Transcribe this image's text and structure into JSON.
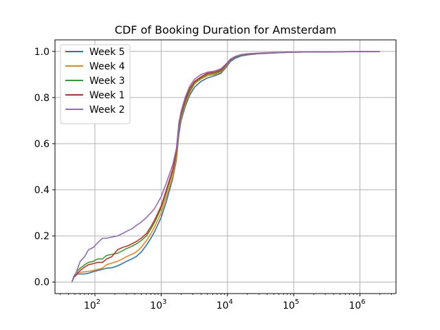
{
  "chart_data": {
    "type": "line",
    "title": "CDF of Booking Duration for Amsterdam",
    "xlabel": "",
    "ylabel": "",
    "xscale": "log",
    "xlim": [
      25,
      3500000
    ],
    "ylim": [
      -0.05,
      1.05
    ],
    "grid": true,
    "legend_position": "top-left",
    "xticks": [
      {
        "value": 100,
        "base": "10",
        "exp": "2"
      },
      {
        "value": 1000,
        "base": "10",
        "exp": "3"
      },
      {
        "value": 10000,
        "base": "10",
        "exp": "4"
      },
      {
        "value": 100000,
        "base": "10",
        "exp": "5"
      },
      {
        "value": 1000000,
        "base": "10",
        "exp": "6"
      }
    ],
    "yticks": [
      {
        "value": 0.0,
        "label": "0.0"
      },
      {
        "value": 0.2,
        "label": "0.2"
      },
      {
        "value": 0.4,
        "label": "0.4"
      },
      {
        "value": 0.6,
        "label": "0.6"
      },
      {
        "value": 0.8,
        "label": "0.8"
      },
      {
        "value": 1.0,
        "label": "1.0"
      }
    ],
    "series": [
      {
        "name": "Week 5",
        "color": "#1f77b4",
        "x": [
          45,
          48,
          52,
          55,
          60,
          70,
          80,
          95,
          110,
          130,
          150,
          180,
          220,
          260,
          300,
          360,
          420,
          500,
          600,
          700,
          800,
          1000,
          1200,
          1500,
          1700,
          1850,
          2000,
          2300,
          2700,
          3200,
          4000,
          5000,
          6500,
          8000,
          9500,
          11000,
          13000,
          16000,
          20000,
          30000,
          50000,
          100000,
          300000,
          1000000,
          2000000
        ],
        "y": [
          0.0,
          0.02,
          0.03,
          0.035,
          0.035,
          0.035,
          0.038,
          0.045,
          0.05,
          0.055,
          0.06,
          0.062,
          0.07,
          0.08,
          0.09,
          0.1,
          0.11,
          0.13,
          0.16,
          0.19,
          0.22,
          0.28,
          0.35,
          0.45,
          0.53,
          0.64,
          0.7,
          0.76,
          0.81,
          0.845,
          0.87,
          0.885,
          0.895,
          0.905,
          0.93,
          0.955,
          0.97,
          0.98,
          0.985,
          0.99,
          0.993,
          0.997,
          0.998,
          0.999,
          1.0
        ]
      },
      {
        "name": "Week 4",
        "color": "#ff7f0e",
        "x": [
          45,
          48,
          52,
          55,
          60,
          70,
          80,
          95,
          110,
          130,
          150,
          180,
          220,
          260,
          300,
          360,
          420,
          500,
          600,
          700,
          800,
          1000,
          1200,
          1500,
          1700,
          1850,
          2000,
          2300,
          2700,
          3200,
          4000,
          5000,
          6500,
          8000,
          9500,
          11000,
          13000,
          16000,
          20000,
          30000,
          50000,
          100000,
          300000,
          1000000,
          2000000
        ],
        "y": [
          0.0,
          0.02,
          0.03,
          0.04,
          0.042,
          0.044,
          0.046,
          0.05,
          0.055,
          0.06,
          0.075,
          0.082,
          0.09,
          0.1,
          0.11,
          0.12,
          0.13,
          0.15,
          0.18,
          0.21,
          0.24,
          0.3,
          0.37,
          0.46,
          0.54,
          0.66,
          0.71,
          0.77,
          0.82,
          0.86,
          0.88,
          0.895,
          0.9,
          0.91,
          0.935,
          0.96,
          0.975,
          0.983,
          0.987,
          0.991,
          0.994,
          0.997,
          0.998,
          0.999,
          1.0
        ]
      },
      {
        "name": "Week 3",
        "color": "#2ca02c",
        "x": [
          45,
          48,
          52,
          55,
          60,
          70,
          80,
          95,
          110,
          130,
          150,
          180,
          220,
          260,
          300,
          360,
          420,
          500,
          600,
          700,
          800,
          1000,
          1200,
          1500,
          1700,
          1850,
          2000,
          2300,
          2700,
          3200,
          4000,
          5000,
          6500,
          8000,
          9500,
          11000,
          13000,
          16000,
          20000,
          30000,
          50000,
          100000,
          300000,
          1000000,
          2000000
        ],
        "y": [
          0.0,
          0.025,
          0.04,
          0.05,
          0.06,
          0.075,
          0.085,
          0.09,
          0.1,
          0.1,
          0.115,
          0.12,
          0.125,
          0.135,
          0.145,
          0.155,
          0.165,
          0.18,
          0.2,
          0.23,
          0.26,
          0.32,
          0.39,
          0.48,
          0.56,
          0.67,
          0.72,
          0.78,
          0.83,
          0.865,
          0.885,
          0.9,
          0.905,
          0.915,
          0.94,
          0.962,
          0.976,
          0.984,
          0.988,
          0.992,
          0.994,
          0.997,
          0.998,
          0.999,
          1.0
        ]
      },
      {
        "name": "Week 1",
        "color": "#d62728",
        "x": [
          45,
          48,
          52,
          55,
          60,
          70,
          80,
          95,
          110,
          130,
          150,
          180,
          220,
          260,
          300,
          360,
          420,
          500,
          600,
          700,
          800,
          1000,
          1200,
          1500,
          1700,
          1850,
          2000,
          2300,
          2700,
          3200,
          4000,
          5000,
          6500,
          8000,
          9500,
          11000,
          13000,
          16000,
          20000,
          30000,
          50000,
          100000,
          300000,
          1000000,
          2000000
        ],
        "y": [
          0.0,
          0.02,
          0.03,
          0.04,
          0.05,
          0.065,
          0.075,
          0.08,
          0.085,
          0.085,
          0.1,
          0.11,
          0.14,
          0.15,
          0.155,
          0.165,
          0.175,
          0.19,
          0.21,
          0.24,
          0.27,
          0.33,
          0.4,
          0.49,
          0.57,
          0.68,
          0.73,
          0.79,
          0.84,
          0.87,
          0.89,
          0.905,
          0.91,
          0.92,
          0.942,
          0.964,
          0.977,
          0.985,
          0.989,
          0.992,
          0.995,
          0.997,
          0.998,
          0.999,
          1.0
        ]
      },
      {
        "name": "Week 2",
        "color": "#9467bd",
        "x": [
          45,
          48,
          52,
          55,
          60,
          70,
          80,
          95,
          110,
          130,
          150,
          180,
          220,
          260,
          300,
          360,
          420,
          500,
          600,
          700,
          800,
          1000,
          1200,
          1500,
          1700,
          1850,
          2000,
          2300,
          2700,
          3200,
          4000,
          5000,
          6500,
          8000,
          9500,
          11000,
          13000,
          16000,
          20000,
          30000,
          50000,
          100000,
          300000,
          1000000,
          2000000
        ],
        "y": [
          0.0,
          0.02,
          0.04,
          0.06,
          0.09,
          0.11,
          0.14,
          0.15,
          0.17,
          0.19,
          0.19,
          0.195,
          0.2,
          0.21,
          0.22,
          0.23,
          0.245,
          0.26,
          0.28,
          0.3,
          0.32,
          0.37,
          0.43,
          0.51,
          0.58,
          0.69,
          0.74,
          0.8,
          0.85,
          0.88,
          0.9,
          0.91,
          0.915,
          0.925,
          0.945,
          0.966,
          0.978,
          0.986,
          0.99,
          0.993,
          0.995,
          0.997,
          0.998,
          0.999,
          1.0
        ]
      }
    ]
  }
}
